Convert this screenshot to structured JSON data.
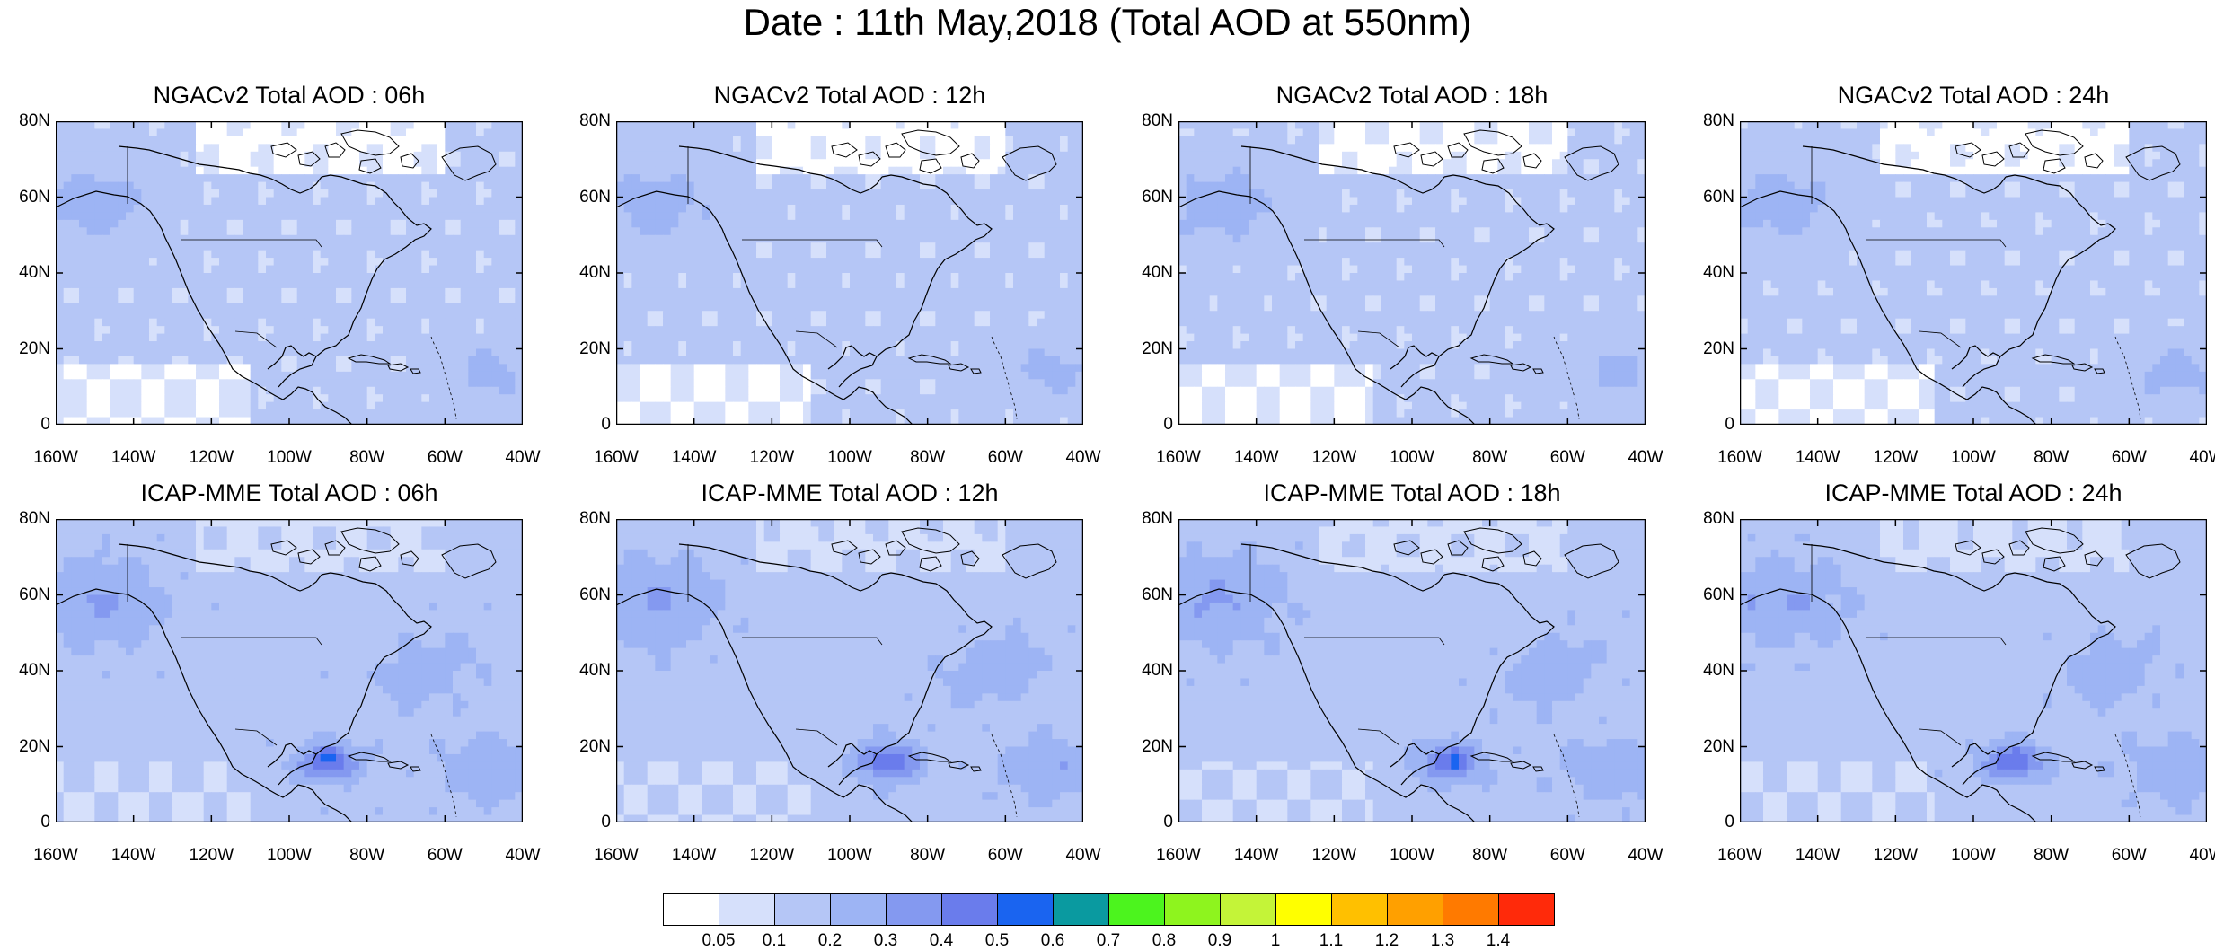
{
  "title": "Date : 11th May,2018 (Total AOD at 550nm)",
  "lat_ticks": [
    "80N",
    "60N",
    "40N",
    "20N",
    "0"
  ],
  "lon_ticks": [
    "160W",
    "140W",
    "120W",
    "100W",
    "80W",
    "60W",
    "40W"
  ],
  "panels": [
    {
      "title": "NGACv2 Total AOD : 06h",
      "model": "NGACv2",
      "lead": "06h"
    },
    {
      "title": "NGACv2 Total AOD : 12h",
      "model": "NGACv2",
      "lead": "12h"
    },
    {
      "title": "NGACv2 Total AOD : 18h",
      "model": "NGACv2",
      "lead": "18h"
    },
    {
      "title": "NGACv2 Total AOD : 24h",
      "model": "NGACv2",
      "lead": "24h"
    },
    {
      "title": "ICAP-MME Total AOD : 06h",
      "model": "ICAP-MME",
      "lead": "06h"
    },
    {
      "title": "ICAP-MME Total AOD : 12h",
      "model": "ICAP-MME",
      "lead": "12h"
    },
    {
      "title": "ICAP-MME Total AOD : 18h",
      "model": "ICAP-MME",
      "lead": "18h"
    },
    {
      "title": "ICAP-MME Total AOD : 24h",
      "model": "ICAP-MME",
      "lead": "24h"
    }
  ],
  "colorbar": {
    "labels": [
      "0.05",
      "0.1",
      "0.2",
      "0.3",
      "0.4",
      "0.5",
      "0.6",
      "0.7",
      "0.8",
      "0.9",
      "1",
      "1.1",
      "1.2",
      "1.3",
      "1.4"
    ],
    "colors": [
      "#ffffff",
      "#d6e0fb",
      "#b5c6f6",
      "#9db4f4",
      "#8499f0",
      "#6a7cec",
      "#1a64f0",
      "#0a9aa0",
      "#4cf41e",
      "#8ef41e",
      "#c4f438",
      "#ffff00",
      "#ffc000",
      "#ffa000",
      "#ff7a00",
      "#ff2a0a"
    ]
  },
  "colors": {
    "land_outline": "#000000",
    "aod_low": "#d6e0fb",
    "aod_mid": "#b5c6f6",
    "aod_high": "#9db4f4"
  }
}
